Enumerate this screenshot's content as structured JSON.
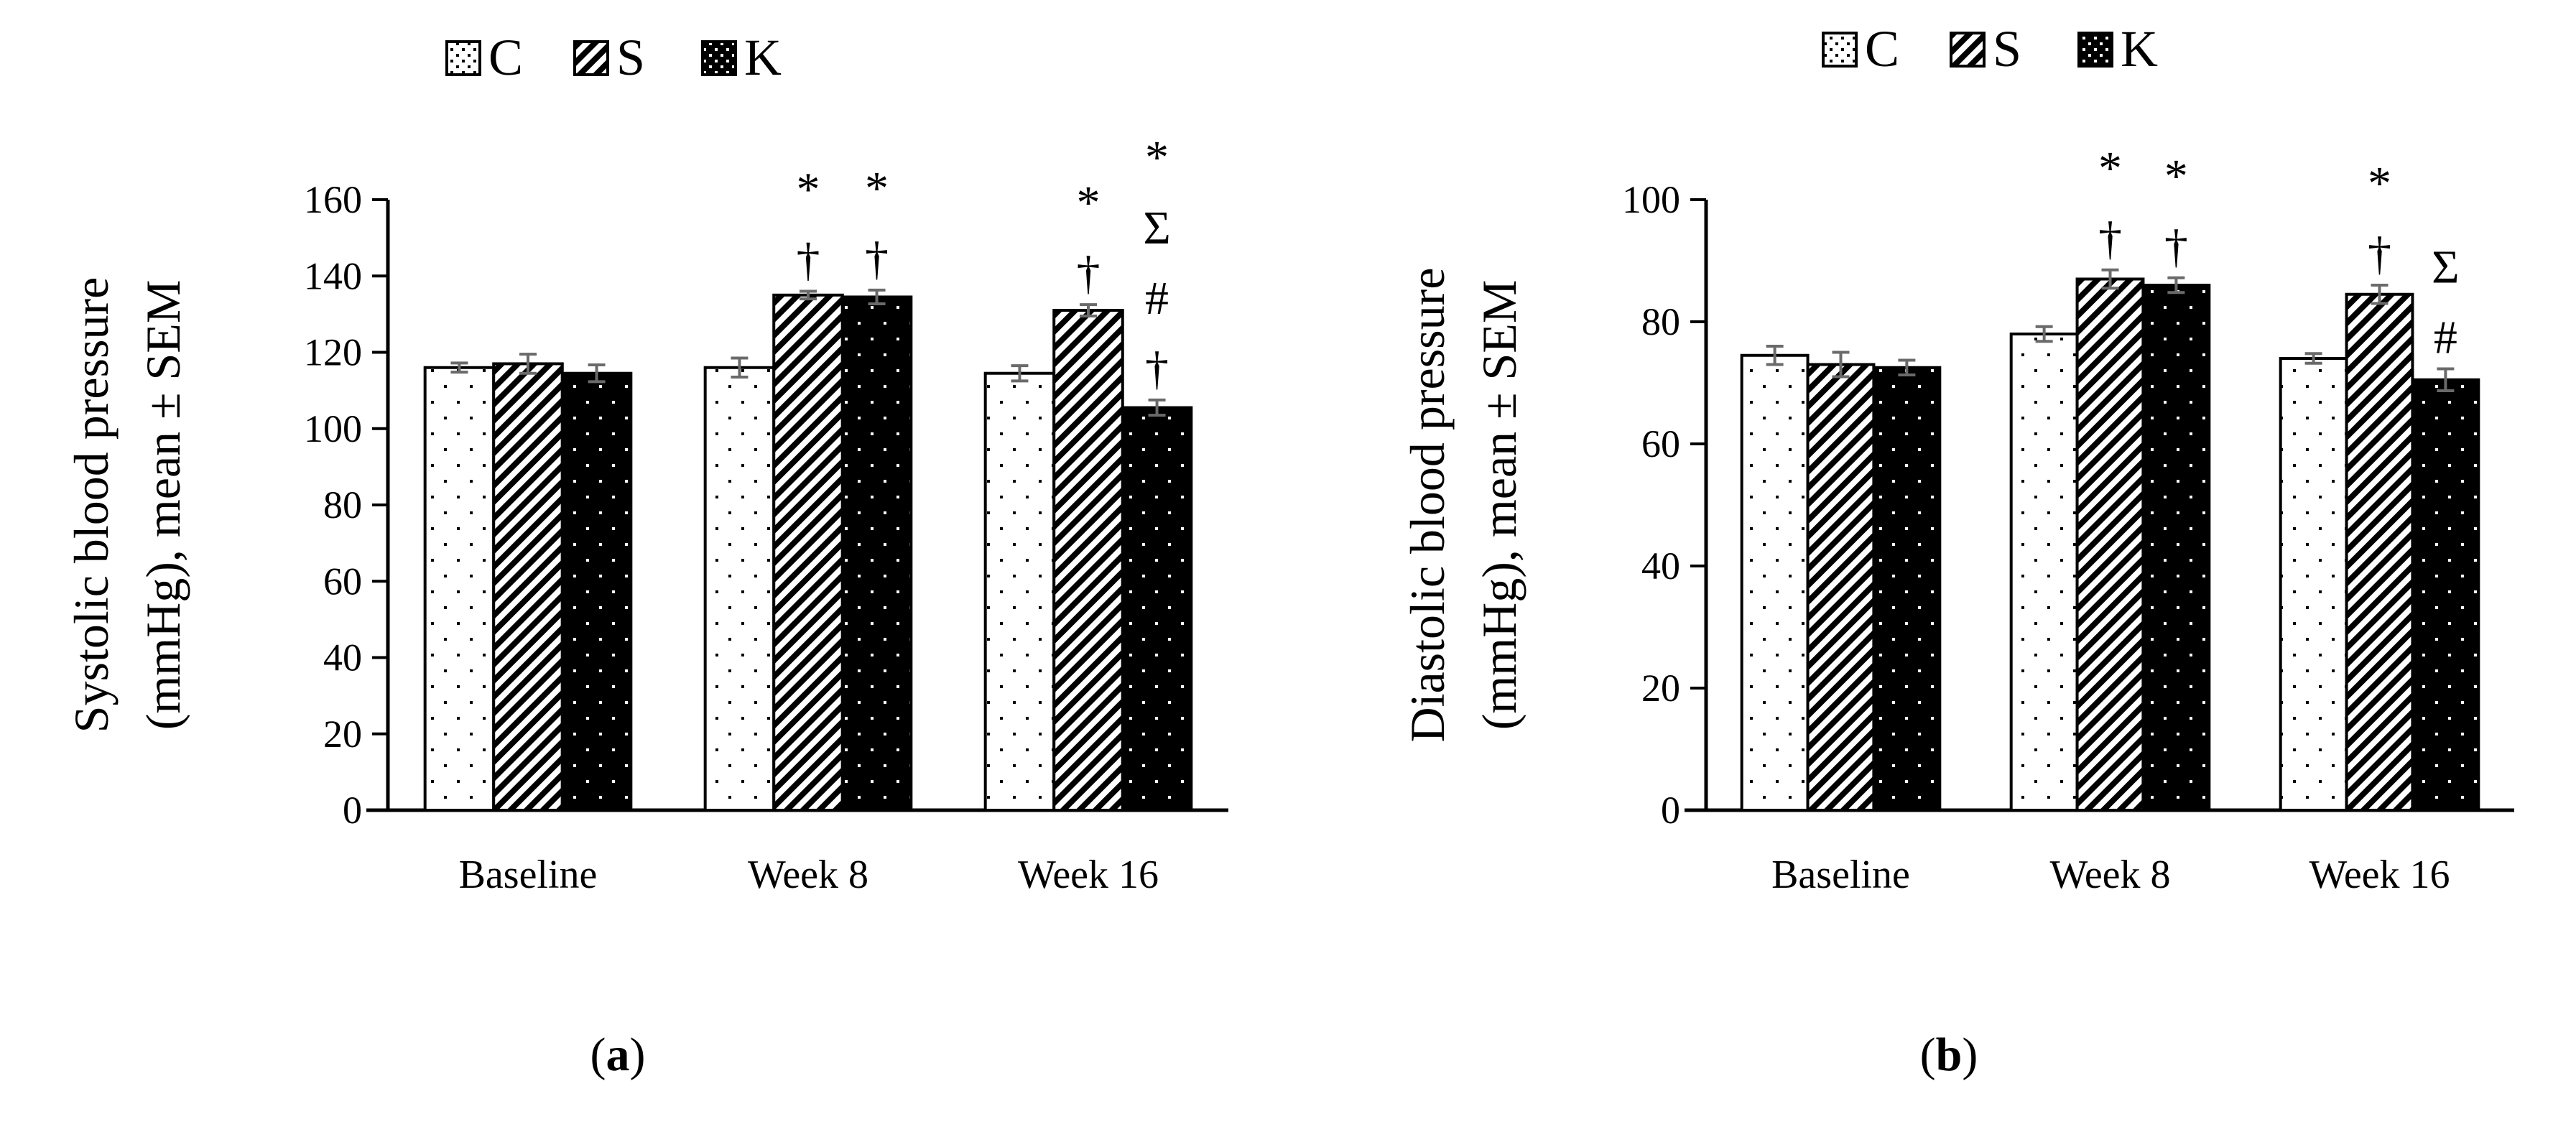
{
  "chart_data": [
    {
      "panel": "a",
      "type": "bar",
      "panel_label": {
        "open": "(",
        "letter": "a",
        "close": ")"
      },
      "ylabel_lines": [
        "Systolic blood pressure",
        "(mmHg), mean ± SEM"
      ],
      "xlabel": "",
      "ylim": [
        0,
        160
      ],
      "yticks": [
        0,
        20,
        40,
        60,
        80,
        100,
        120,
        140,
        160
      ],
      "categories": [
        "Baseline",
        "Week 8",
        "Week 16"
      ],
      "series": [
        {
          "name": "C",
          "values": [
            116,
            116,
            114.5
          ],
          "errors": [
            1.2,
            2.5,
            2
          ]
        },
        {
          "name": "S",
          "values": [
            117,
            135,
            131
          ],
          "errors": [
            2.5,
            1,
            1.5
          ]
        },
        {
          "name": "K",
          "values": [
            114.5,
            134.5,
            105.5
          ],
          "errors": [
            2.2,
            1.8,
            2
          ]
        }
      ],
      "legend": [
        "C",
        "S",
        "K"
      ],
      "annotations": [
        {
          "category": 1,
          "series": 1,
          "marks": [
            "†",
            "*"
          ]
        },
        {
          "category": 1,
          "series": 2,
          "marks": [
            "†",
            "*"
          ]
        },
        {
          "category": 2,
          "series": 1,
          "marks": [
            "†",
            "*"
          ]
        },
        {
          "category": 2,
          "series": 2,
          "marks": [
            "†",
            "#",
            "Σ",
            "*"
          ]
        }
      ]
    },
    {
      "panel": "b",
      "type": "bar",
      "panel_label": {
        "open": "(",
        "letter": "b",
        "close": ")"
      },
      "ylabel_lines": [
        "Diastolic blood pressure",
        "(mmHg), mean ± SEM"
      ],
      "xlabel": "",
      "ylim": [
        0,
        100
      ],
      "yticks": [
        0,
        20,
        40,
        60,
        80,
        100
      ],
      "categories": [
        "Baseline",
        "Week 8",
        "Week 16"
      ],
      "series": [
        {
          "name": "C",
          "values": [
            74.5,
            78,
            74
          ],
          "errors": [
            1.5,
            1.2,
            0.8
          ]
        },
        {
          "name": "S",
          "values": [
            73,
            87,
            84.5
          ],
          "errors": [
            2,
            1.5,
            1.5
          ]
        },
        {
          "name": "K",
          "values": [
            72.5,
            86,
            70.5
          ],
          "errors": [
            1.2,
            1.2,
            1.8
          ]
        }
      ],
      "legend": [
        "C",
        "S",
        "K"
      ],
      "annotations": [
        {
          "category": 1,
          "series": 1,
          "marks": [
            "†",
            "*"
          ]
        },
        {
          "category": 1,
          "series": 2,
          "marks": [
            "†",
            "*"
          ]
        },
        {
          "category": 2,
          "series": 1,
          "marks": [
            "†",
            "*"
          ]
        },
        {
          "category": 2,
          "series": 2,
          "marks": [
            "#",
            "Σ"
          ]
        }
      ]
    }
  ]
}
